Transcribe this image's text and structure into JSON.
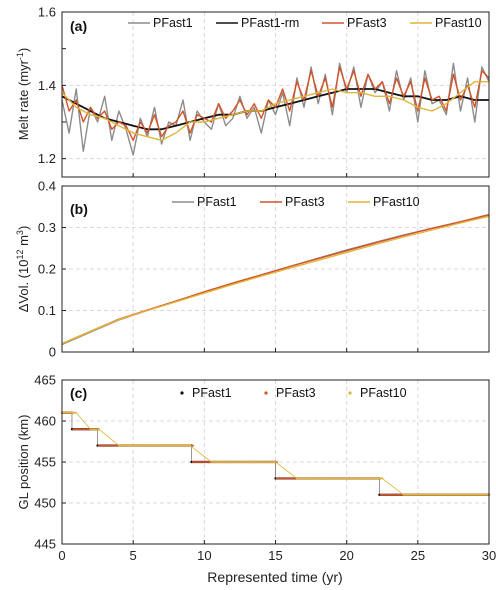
{
  "colors": {
    "pfast1_gray": "#8c8c8c",
    "rm_black": "#111111",
    "pfast3": "#d2532a",
    "pfast10": "#e3b43a",
    "grid": "#d9d9d9"
  },
  "chart_data": [
    {
      "type": "line",
      "panel_label": "(a)",
      "ylabel_main": "Melt rate (myr",
      "ylabel_sup": "-1",
      "ylabel_end": ")",
      "xlim": [
        0,
        30
      ],
      "ylim": [
        1.15,
        1.6
      ],
      "yticks": [
        "1.2",
        "1.4",
        "1.6"
      ],
      "grid": true,
      "legend_position": "top",
      "legend": [
        "PFast1",
        "PFast1-rm",
        "PFast3",
        "PFast10"
      ],
      "series": [
        {
          "name": "PFast1",
          "x": [
            0,
            0.5,
            1,
            1.5,
            2,
            2.5,
            3,
            3.5,
            4,
            4.5,
            5,
            5.5,
            6,
            6.5,
            7,
            7.5,
            8,
            8.5,
            9,
            9.5,
            10,
            10.5,
            11,
            11.5,
            12,
            12.5,
            13,
            13.5,
            14,
            14.5,
            15,
            15.5,
            16,
            16.5,
            17,
            17.5,
            18,
            18.5,
            19,
            19.5,
            20,
            20.5,
            21,
            21.5,
            22,
            22.5,
            23,
            23.5,
            24,
            24.5,
            25,
            25.5,
            26,
            26.5,
            27,
            27.5,
            28,
            28.5,
            29,
            29.5,
            30
          ],
          "values": [
            1.36,
            1.27,
            1.39,
            1.22,
            1.34,
            1.3,
            1.37,
            1.25,
            1.33,
            1.28,
            1.21,
            1.31,
            1.26,
            1.34,
            1.24,
            1.3,
            1.29,
            1.36,
            1.25,
            1.33,
            1.3,
            1.28,
            1.35,
            1.29,
            1.31,
            1.37,
            1.31,
            1.34,
            1.27,
            1.36,
            1.32,
            1.38,
            1.29,
            1.42,
            1.34,
            1.45,
            1.35,
            1.43,
            1.32,
            1.46,
            1.38,
            1.45,
            1.34,
            1.43,
            1.38,
            1.41,
            1.33,
            1.44,
            1.36,
            1.42,
            1.3,
            1.44,
            1.35,
            1.36,
            1.32,
            1.46,
            1.33,
            1.42,
            1.3,
            1.45,
            1.41
          ]
        },
        {
          "name": "PFast1-rm",
          "x": [
            0,
            1,
            2,
            3,
            4,
            5,
            6,
            7,
            8,
            9,
            10,
            11,
            12,
            13,
            14,
            15,
            16,
            17,
            18,
            19,
            20,
            21,
            22,
            23,
            24,
            25,
            26,
            27,
            28,
            29,
            30
          ],
          "values": [
            1.37,
            1.35,
            1.33,
            1.31,
            1.3,
            1.29,
            1.28,
            1.28,
            1.29,
            1.3,
            1.31,
            1.32,
            1.32,
            1.33,
            1.33,
            1.34,
            1.35,
            1.36,
            1.37,
            1.38,
            1.39,
            1.39,
            1.39,
            1.38,
            1.37,
            1.37,
            1.36,
            1.36,
            1.37,
            1.36,
            1.36
          ]
        },
        {
          "name": "PFast3",
          "x": [
            0,
            0.5,
            1,
            1.5,
            2,
            2.5,
            3,
            3.5,
            4,
            4.5,
            5,
            5.5,
            6,
            6.5,
            7,
            7.5,
            8,
            8.5,
            9,
            9.5,
            10,
            10.5,
            11,
            11.5,
            12,
            12.5,
            13,
            13.5,
            14,
            14.5,
            15,
            15.5,
            16,
            16.5,
            17,
            17.5,
            18,
            18.5,
            19,
            19.5,
            20,
            20.5,
            21,
            21.5,
            22,
            22.5,
            23,
            23.5,
            24,
            24.5,
            25,
            25.5,
            26,
            26.5,
            27,
            27.5,
            28,
            28.5,
            29,
            29.5,
            30
          ],
          "values": [
            1.4,
            1.33,
            1.36,
            1.3,
            1.34,
            1.31,
            1.33,
            1.28,
            1.3,
            1.29,
            1.25,
            1.3,
            1.27,
            1.32,
            1.26,
            1.29,
            1.3,
            1.33,
            1.27,
            1.32,
            1.31,
            1.3,
            1.35,
            1.31,
            1.33,
            1.36,
            1.32,
            1.35,
            1.31,
            1.36,
            1.34,
            1.39,
            1.33,
            1.41,
            1.36,
            1.44,
            1.37,
            1.42,
            1.34,
            1.45,
            1.39,
            1.44,
            1.37,
            1.43,
            1.39,
            1.41,
            1.35,
            1.42,
            1.37,
            1.41,
            1.33,
            1.42,
            1.36,
            1.37,
            1.33,
            1.43,
            1.36,
            1.4,
            1.34,
            1.44,
            1.42
          ]
        },
        {
          "name": "PFast10",
          "x": [
            0,
            1,
            2,
            3,
            4,
            5,
            6,
            7,
            8,
            9,
            10,
            11,
            12,
            13,
            14,
            15,
            16,
            17,
            18,
            19,
            20,
            21,
            22,
            23,
            24,
            25,
            26,
            27,
            28,
            29,
            30
          ],
          "values": [
            1.38,
            1.34,
            1.32,
            1.31,
            1.29,
            1.27,
            1.26,
            1.25,
            1.27,
            1.3,
            1.3,
            1.31,
            1.32,
            1.33,
            1.33,
            1.35,
            1.36,
            1.37,
            1.38,
            1.39,
            1.38,
            1.38,
            1.37,
            1.37,
            1.36,
            1.34,
            1.33,
            1.35,
            1.38,
            1.41,
            1.41
          ]
        }
      ]
    },
    {
      "type": "line",
      "panel_label": "(b)",
      "ylabel_main": "ΔVol. (10",
      "ylabel_sup": "12",
      "ylabel_end": " m",
      "ylabel_sup2": "3",
      "ylabel_close": ")",
      "xlim": [
        0,
        30
      ],
      "ylim": [
        0,
        0.4
      ],
      "yticks": [
        "0",
        "0.1",
        "0.2",
        "0.3",
        "0.4"
      ],
      "grid": true,
      "legend_position": "top",
      "legend": [
        "PFast1",
        "PFast3",
        "PFast10"
      ],
      "series": [
        {
          "name": "PFast1",
          "x": [
            0,
            2,
            4,
            6,
            8,
            10,
            12,
            14,
            16,
            18,
            20,
            22,
            24,
            26,
            28,
            30
          ],
          "values": [
            0.018,
            0.048,
            0.077,
            0.1,
            0.122,
            0.143,
            0.164,
            0.185,
            0.206,
            0.226,
            0.246,
            0.264,
            0.282,
            0.298,
            0.313,
            0.328
          ]
        },
        {
          "name": "PFast3",
          "x": [
            0,
            2,
            4,
            6,
            8,
            10,
            12,
            14,
            16,
            18,
            20,
            22,
            24,
            26,
            28,
            30
          ],
          "values": [
            0.02,
            0.05,
            0.079,
            0.101,
            0.123,
            0.145,
            0.166,
            0.186,
            0.206,
            0.225,
            0.244,
            0.263,
            0.281,
            0.298,
            0.314,
            0.331
          ]
        },
        {
          "name": "PFast10",
          "x": [
            0,
            2,
            4,
            6,
            8,
            10,
            12,
            14,
            16,
            18,
            20,
            22,
            24,
            26,
            28,
            30
          ],
          "values": [
            0.02,
            0.05,
            0.078,
            0.1,
            0.121,
            0.142,
            0.163,
            0.183,
            0.202,
            0.221,
            0.24,
            0.259,
            0.277,
            0.294,
            0.311,
            0.327
          ]
        }
      ]
    },
    {
      "type": "scatter",
      "panel_label": "(c)",
      "ylabel": "GL position (km)",
      "xlabel": "Represented time (yr)",
      "xlim": [
        0,
        30
      ],
      "ylim": [
        445,
        465
      ],
      "xticks": [
        "0",
        "5",
        "10",
        "15",
        "20",
        "25",
        "30"
      ],
      "yticks": [
        "445",
        "450",
        "455",
        "460",
        "465"
      ],
      "grid": true,
      "legend_position": "top",
      "legend": [
        "PFast1",
        "PFast3",
        "PFast10"
      ],
      "series": [
        {
          "name": "PFast1",
          "steps": [
            [
              0,
              0.7,
              461
            ],
            [
              0.7,
              2.5,
              459
            ],
            [
              2.5,
              9.1,
              457
            ],
            [
              9.1,
              15.0,
              455
            ],
            [
              15.0,
              22.3,
              453
            ],
            [
              22.3,
              30,
              451
            ]
          ]
        },
        {
          "name": "PFast3",
          "steps": [
            [
              0,
              0.8,
              461
            ],
            [
              0.8,
              2.6,
              459
            ],
            [
              2.6,
              9.2,
              457
            ],
            [
              9.2,
              15.1,
              455
            ],
            [
              15.1,
              22.4,
              453
            ],
            [
              22.4,
              30,
              451
            ]
          ]
        },
        {
          "name": "PFast10",
          "steps": [
            [
              0,
              1.0,
              461
            ],
            [
              2.0,
              2.6,
              459
            ],
            [
              4.0,
              9.0,
              457
            ],
            [
              10.5,
              15.0,
              455
            ],
            [
              16.5,
              22.5,
              453
            ],
            [
              24.0,
              30,
              451
            ]
          ]
        }
      ]
    }
  ]
}
